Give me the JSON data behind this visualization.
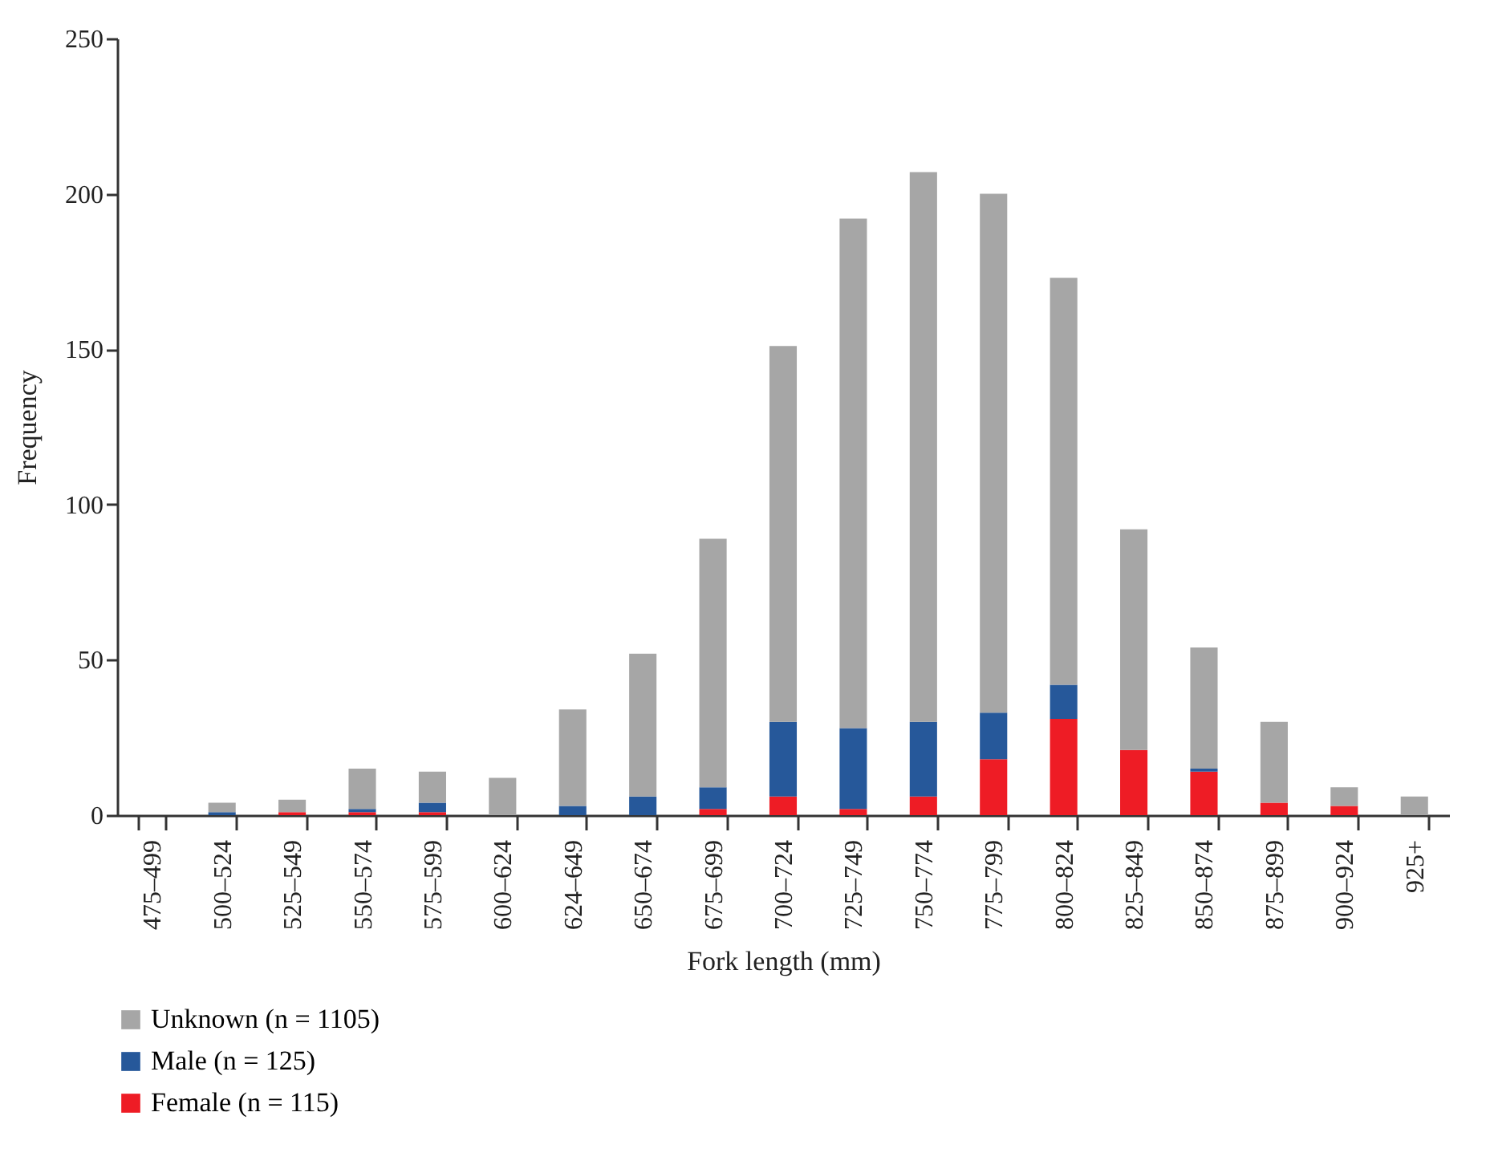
{
  "chart_data": {
    "type": "bar",
    "stacked": true,
    "xlabel": "Fork length (mm)",
    "ylabel": "Frequency",
    "categories": [
      "475–499",
      "500–524",
      "525–549",
      "550–574",
      "575–599",
      "600–624",
      "624–649",
      "650–674",
      "675–699",
      "700–724",
      "725–749",
      "750–774",
      "775–799",
      "800–824",
      "825–849",
      "850–874",
      "875–899",
      "900–924",
      "925+"
    ],
    "series": [
      {
        "name": "Female (n = 115)",
        "color": "#ee1c25",
        "values": [
          0,
          0,
          1,
          1,
          1,
          0,
          0,
          0,
          2,
          6,
          2,
          6,
          18,
          31,
          21,
          14,
          4,
          3,
          0
        ]
      },
      {
        "name": "Male (n = 125)",
        "color": "#26589a",
        "values": [
          0,
          1,
          0,
          1,
          3,
          0,
          3,
          6,
          7,
          24,
          26,
          24,
          15,
          11,
          0,
          1,
          0,
          0,
          0
        ]
      },
      {
        "name": "Unknown (n = 1105)",
        "color": "#a6a6a6",
        "values": [
          0,
          3,
          4,
          13,
          10,
          12,
          31,
          46,
          80,
          121,
          164,
          177,
          167,
          131,
          71,
          39,
          26,
          6,
          6
        ]
      }
    ],
    "ylim": [
      0,
      250
    ],
    "yticks": [
      0,
      50,
      100,
      150,
      200,
      250
    ],
    "legend": "bottom left"
  }
}
